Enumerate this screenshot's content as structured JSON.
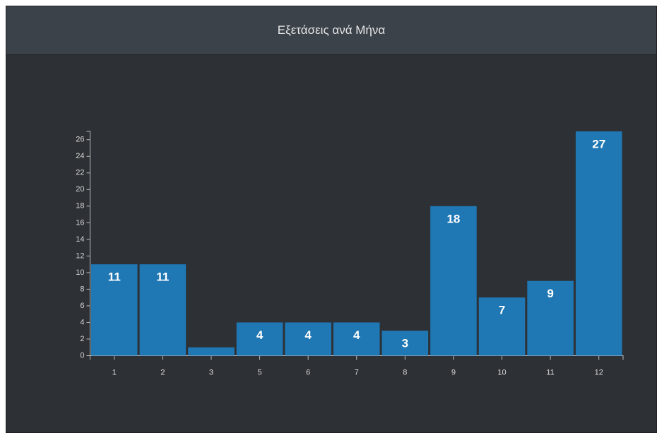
{
  "chart_data": {
    "type": "bar",
    "title": "Εξετάσεις ανά Μήνα",
    "categories": [
      "1",
      "2",
      "3",
      "5",
      "6",
      "7",
      "8",
      "9",
      "10",
      "11",
      "12"
    ],
    "values": [
      11,
      11,
      1,
      4,
      4,
      4,
      3,
      18,
      7,
      9,
      27
    ],
    "color": "#1f77b4",
    "ylim": [
      0,
      27
    ],
    "yticks": [
      0,
      2,
      4,
      6,
      8,
      10,
      12,
      14,
      16,
      18,
      20,
      22,
      24,
      26
    ],
    "grid": false
  }
}
